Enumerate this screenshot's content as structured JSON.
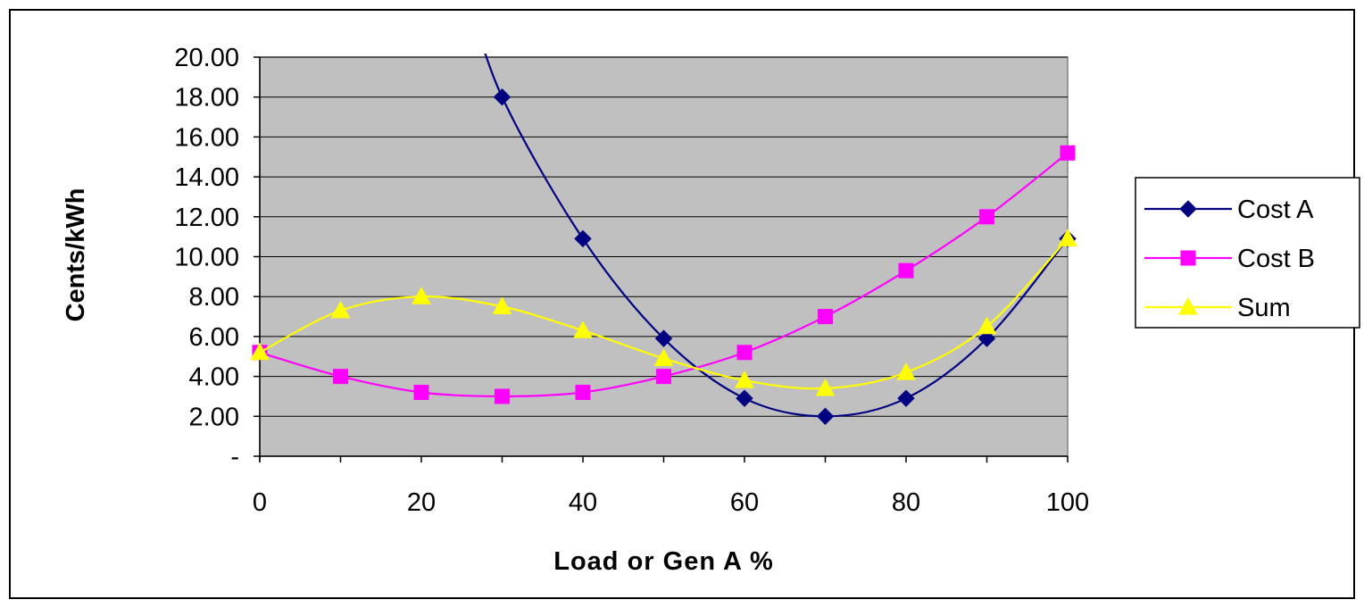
{
  "chart_data": {
    "type": "line",
    "x": [
      0,
      10,
      20,
      30,
      40,
      50,
      60,
      70,
      80,
      90,
      100
    ],
    "series": [
      {
        "name": "Cost A",
        "color": "#000080",
        "marker": "diamond",
        "values": [
          null,
          null,
          null,
          18.0,
          10.9,
          5.9,
          2.9,
          2.0,
          2.9,
          5.9,
          10.9
        ]
      },
      {
        "name": "Cost B",
        "color": "#ff00ff",
        "marker": "square",
        "values": [
          5.2,
          4.0,
          3.2,
          3.0,
          3.2,
          4.0,
          5.2,
          7.0,
          9.3,
          12.0,
          15.2
        ]
      },
      {
        "name": "Sum",
        "color": "#ffff00",
        "marker": "triangle",
        "values": [
          5.2,
          7.3,
          8.0,
          7.5,
          6.3,
          4.9,
          3.8,
          3.4,
          4.2,
          6.5,
          10.9
        ]
      }
    ],
    "ytick_labels": [
      "-",
      "2.00",
      "4.00",
      "6.00",
      "8.00",
      "10.00",
      "12.00",
      "14.00",
      "16.00",
      "18.00",
      "20.00"
    ],
    "xtick_labels": [
      "0",
      "20",
      "40",
      "60",
      "80",
      "100"
    ],
    "xlabel": "Load or Gen A %",
    "ylabel": "Cents/kWh",
    "xlim": [
      0,
      100
    ],
    "ylim": [
      0,
      20
    ],
    "grid": true,
    "plot_background": "#c0c0c0",
    "legend_position": "right"
  }
}
